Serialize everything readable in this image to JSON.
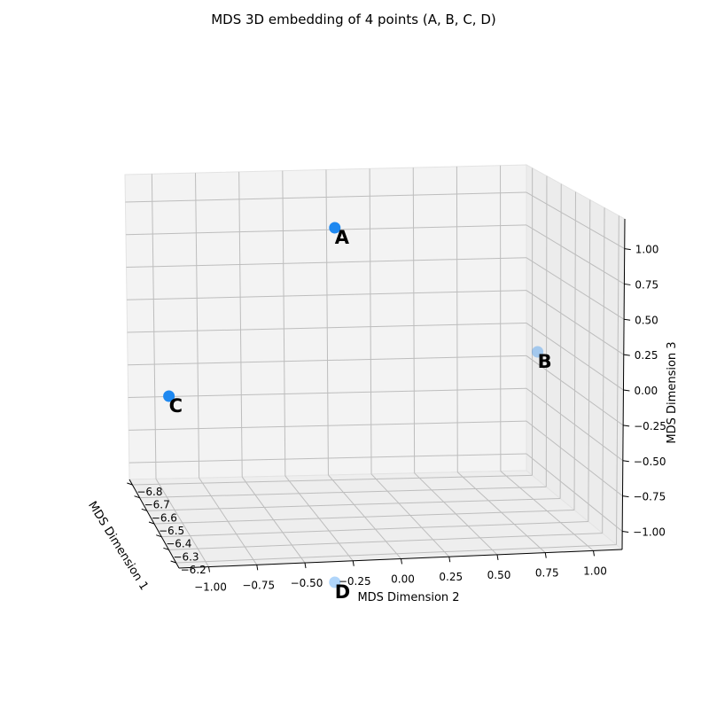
{
  "chart_data": {
    "type": "scatter",
    "title": "MDS 3D embedding of 4 points (A, B, C, D)",
    "xlabel": "MDS Dimension 1",
    "ylabel": "MDS Dimension 2",
    "zlabel": "MDS Dimension 3",
    "xticks": [
      "−6.8",
      "−6.7",
      "−6.6",
      "−6.5",
      "−6.4",
      "−6.3",
      "−6.2"
    ],
    "yticks": [
      "−1.00",
      "−0.75",
      "−0.50",
      "−0.25",
      "0.00",
      "0.25",
      "0.50",
      "0.75",
      "1.00"
    ],
    "zticks": [
      "−1.00",
      "−0.75",
      "−0.50",
      "−0.25",
      "0.00",
      "0.25",
      "0.50",
      "0.75",
      "1.00"
    ],
    "grid": true,
    "marker_color": "#1e88f0",
    "points": [
      {
        "label": "A",
        "x": -6.5,
        "y": -0.15,
        "z": 0.95
      },
      {
        "label": "B",
        "x": -6.5,
        "y": 0.95,
        "z": 0.25
      },
      {
        "label": "C",
        "x": -6.5,
        "y": -1.05,
        "z": 0.0
      },
      {
        "label": "D",
        "x": -6.5,
        "y": -0.15,
        "z": -1.05
      }
    ]
  }
}
